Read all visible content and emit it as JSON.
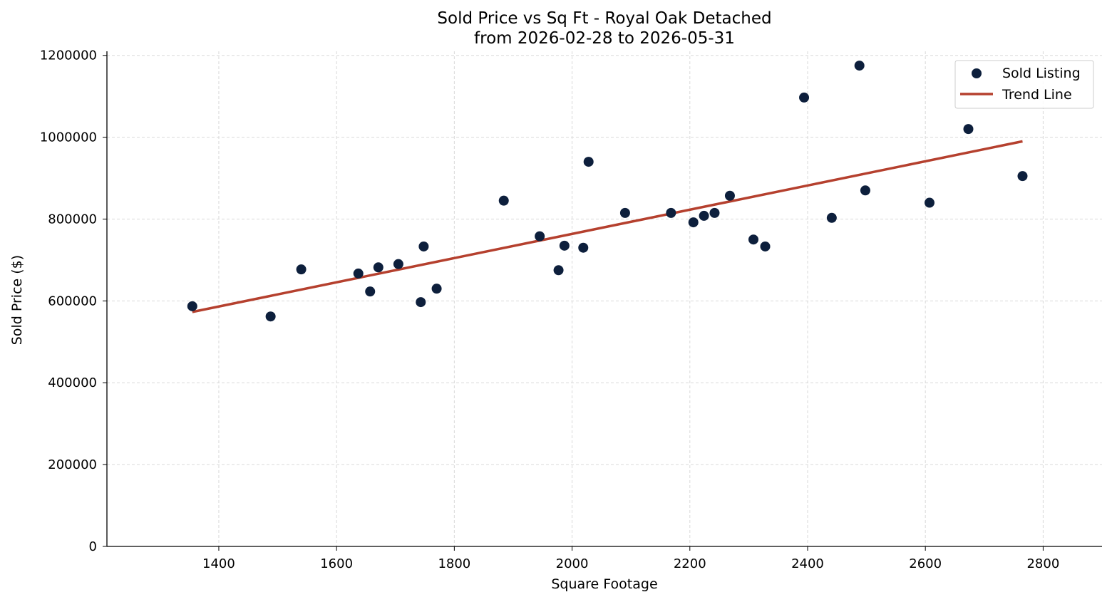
{
  "chart_data": {
    "type": "scatter",
    "title": "Sold Price vs Sq Ft - Royal Oak Detached",
    "subtitle": "from 2026-02-28 to 2026-05-31",
    "xlabel": "Square Footage",
    "ylabel": "Sold Price ($)",
    "xlim": [
      1210,
      2900
    ],
    "ylim": [
      0,
      1210000
    ],
    "xticks": [
      1400,
      1600,
      1800,
      2000,
      2200,
      2400,
      2600,
      2800
    ],
    "yticks": [
      0,
      200000,
      400000,
      600000,
      800000,
      1000000,
      1200000
    ],
    "grid": true,
    "legend_position": "top-right",
    "colors": {
      "points": "#0d1f3c",
      "trend": "#b5402e"
    },
    "series": [
      {
        "name": "Sold Listing",
        "kind": "scatter",
        "points": [
          {
            "x": 1355,
            "y": 587000
          },
          {
            "x": 1488,
            "y": 562000
          },
          {
            "x": 1540,
            "y": 677000
          },
          {
            "x": 1637,
            "y": 667000
          },
          {
            "x": 1657,
            "y": 623000
          },
          {
            "x": 1671,
            "y": 682000
          },
          {
            "x": 1705,
            "y": 690000
          },
          {
            "x": 1743,
            "y": 597000
          },
          {
            "x": 1748,
            "y": 733000
          },
          {
            "x": 1770,
            "y": 630000
          },
          {
            "x": 1884,
            "y": 845000
          },
          {
            "x": 1945,
            "y": 758000
          },
          {
            "x": 1977,
            "y": 675000
          },
          {
            "x": 1987,
            "y": 735000
          },
          {
            "x": 2019,
            "y": 730000
          },
          {
            "x": 2028,
            "y": 940000
          },
          {
            "x": 2090,
            "y": 815000
          },
          {
            "x": 2168,
            "y": 815000
          },
          {
            "x": 2206,
            "y": 792000
          },
          {
            "x": 2224,
            "y": 808000
          },
          {
            "x": 2242,
            "y": 815000
          },
          {
            "x": 2268,
            "y": 857000
          },
          {
            "x": 2308,
            "y": 750000
          },
          {
            "x": 2328,
            "y": 733000
          },
          {
            "x": 2394,
            "y": 1097000
          },
          {
            "x": 2441,
            "y": 803000
          },
          {
            "x": 2488,
            "y": 1175000
          },
          {
            "x": 2498,
            "y": 870000
          },
          {
            "x": 2607,
            "y": 840000
          },
          {
            "x": 2673,
            "y": 1020000
          },
          {
            "x": 2765,
            "y": 905000
          }
        ]
      },
      {
        "name": "Trend Line",
        "kind": "line",
        "points": [
          {
            "x": 1355,
            "y": 573000
          },
          {
            "x": 2765,
            "y": 990000
          }
        ]
      }
    ]
  }
}
